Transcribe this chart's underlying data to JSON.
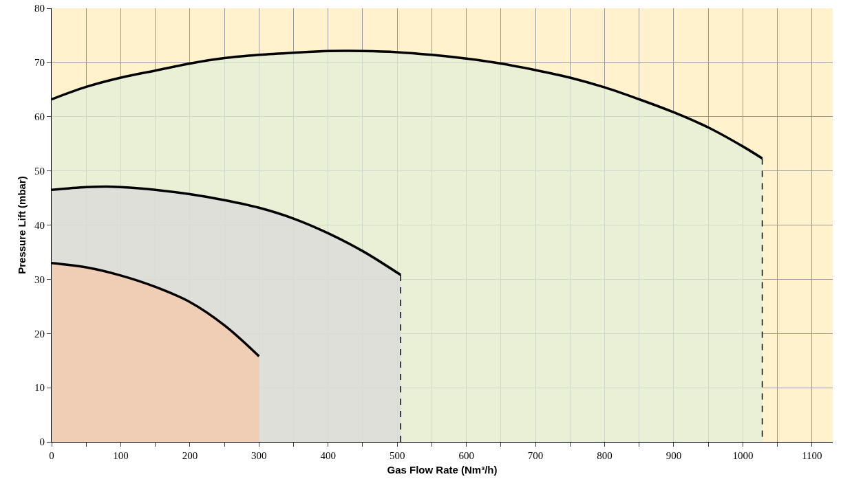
{
  "chart_data": {
    "type": "area",
    "xlabel": "Gas Flow Rate (Nm³/h)",
    "ylabel": "Pressure Lift (mbar)",
    "xlim": [
      0,
      1130
    ],
    "ylim": [
      0,
      80
    ],
    "xticks": [
      0,
      {
        "value": 50,
        "label": null
      },
      100,
      {
        "value": 150,
        "label": null
      },
      200,
      {
        "value": 250,
        "label": null
      },
      300,
      {
        "value": 350,
        "label": null
      },
      400,
      {
        "value": 450,
        "label": null
      },
      500,
      {
        "value": 550,
        "label": null
      },
      600,
      {
        "value": 650,
        "label": null
      },
      700,
      {
        "value": 750,
        "label": null
      },
      800,
      {
        "value": 850,
        "label": null
      },
      900,
      {
        "value": 950,
        "label": null
      },
      1000,
      {
        "value": 1050,
        "label": null
      },
      1100
    ],
    "yticks": [
      0,
      10,
      20,
      30,
      40,
      50,
      60,
      70,
      80
    ],
    "grid": true,
    "bands": [
      {
        "axis": "y",
        "from": 0,
        "to": 80,
        "color": "#fff2cc"
      }
    ],
    "series": [
      {
        "color": "#e2efd9",
        "x": [
          0,
          50,
          100,
          150,
          200,
          250,
          300,
          350,
          400,
          450,
          500,
          550,
          600,
          650,
          700,
          750,
          800,
          850,
          900,
          950,
          1000,
          1028
        ],
        "values": [
          63.2,
          65.5,
          67.2,
          68.5,
          69.8,
          70.8,
          71.4,
          71.8,
          72.1,
          72.1,
          71.9,
          71.4,
          70.7,
          69.8,
          68.6,
          67.2,
          65.4,
          63.2,
          60.8,
          58,
          54.5,
          52.3
        ]
      },
      {
        "color": "#dadada",
        "x": [
          0,
          50,
          80,
          100,
          150,
          200,
          250,
          300,
          350,
          400,
          450,
          505
        ],
        "values": [
          46.5,
          47,
          47.1,
          47,
          46.5,
          45.7,
          44.6,
          43.2,
          41.2,
          38.5,
          35.2,
          30.8
        ]
      },
      {
        "color": "#f5c8a8",
        "x": [
          0,
          50,
          100,
          150,
          200,
          250,
          300
        ],
        "values": [
          33,
          32.2,
          30.7,
          28.6,
          25.8,
          21.5,
          15.8
        ]
      },
      {
        "type": "line",
        "line_style": "dashed",
        "color": "#000000",
        "x": [
          505,
          505
        ],
        "values": [
          30.8,
          0
        ]
      },
      {
        "type": "line",
        "line_style": "dashed",
        "color": "#000000",
        "x": [
          1028,
          1028
        ],
        "values": [
          52.3,
          0
        ]
      }
    ]
  }
}
